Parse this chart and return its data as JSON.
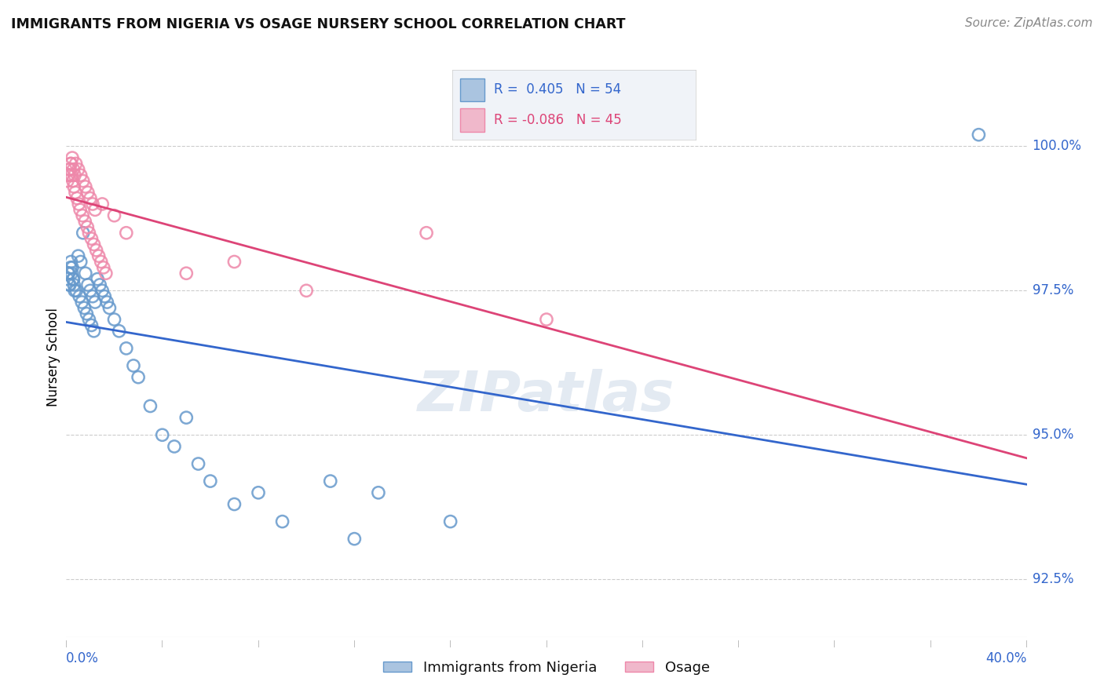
{
  "title": "IMMIGRANTS FROM NIGERIA VS OSAGE NURSERY SCHOOL CORRELATION CHART",
  "source": "Source: ZipAtlas.com",
  "ylabel": "Nursery School",
  "ylabel_right_vals": [
    100.0,
    97.5,
    95.0,
    92.5
  ],
  "xmin": 0.0,
  "xmax": 40.0,
  "ymin": 91.5,
  "ymax": 101.2,
  "legend_blue_R": "R =  0.405",
  "legend_blue_N": "N = 54",
  "legend_pink_R": "R = -0.086",
  "legend_pink_N": "N = 45",
  "blue_label": "Immigrants from Nigeria",
  "pink_label": "Osage",
  "background_color": "#ffffff",
  "grid_color": "#cccccc",
  "blue_color": "#6699cc",
  "pink_color": "#ee88aa",
  "blue_line_color": "#3366cc",
  "pink_line_color": "#dd4477",
  "title_color": "#111111",
  "axis_label_color": "#3366cc",
  "blue_x": [
    0.1,
    0.15,
    0.2,
    0.25,
    0.3,
    0.35,
    0.5,
    0.6,
    0.7,
    0.8,
    0.9,
    1.0,
    1.1,
    1.2,
    1.3,
    1.4,
    1.5,
    1.6,
    1.7,
    1.8,
    2.0,
    2.2,
    2.5,
    2.8,
    3.0,
    3.5,
    4.0,
    4.5,
    5.0,
    5.5,
    6.0,
    7.0,
    8.0,
    9.0,
    11.0,
    12.0,
    13.0,
    16.0,
    38.0,
    0.05,
    0.08,
    0.12,
    0.18,
    0.22,
    0.28,
    0.32,
    0.42,
    0.55,
    0.65,
    0.75,
    0.85,
    0.95,
    1.05,
    1.15
  ],
  "blue_y": [
    97.8,
    97.6,
    98.0,
    97.9,
    97.7,
    97.5,
    98.1,
    98.0,
    98.5,
    97.8,
    97.6,
    97.5,
    97.4,
    97.3,
    97.7,
    97.6,
    97.5,
    97.4,
    97.3,
    97.2,
    97.0,
    96.8,
    96.5,
    96.2,
    96.0,
    95.5,
    95.0,
    94.8,
    95.3,
    94.5,
    94.2,
    93.8,
    94.0,
    93.5,
    94.2,
    93.2,
    94.0,
    93.5,
    100.2,
    97.7,
    97.8,
    97.6,
    97.9,
    97.8,
    97.7,
    97.6,
    97.5,
    97.4,
    97.3,
    97.2,
    97.1,
    97.0,
    96.9,
    96.8
  ],
  "pink_x": [
    0.1,
    0.15,
    0.2,
    0.25,
    0.3,
    0.35,
    0.4,
    0.5,
    0.6,
    0.7,
    0.8,
    0.9,
    1.0,
    1.1,
    1.2,
    1.5,
    2.0,
    2.5,
    5.0,
    7.0,
    10.0,
    15.0,
    20.0,
    0.05,
    0.08,
    0.12,
    0.18,
    0.22,
    0.28,
    0.32,
    0.38,
    0.45,
    0.52,
    0.58,
    0.68,
    0.78,
    0.88,
    0.95,
    1.05,
    1.15,
    1.25,
    1.35,
    1.45,
    1.55,
    1.65
  ],
  "pink_y": [
    99.5,
    99.6,
    99.7,
    99.8,
    99.6,
    99.5,
    99.7,
    99.6,
    99.5,
    99.4,
    99.3,
    99.2,
    99.1,
    99.0,
    98.9,
    99.0,
    98.8,
    98.5,
    97.8,
    98.0,
    97.5,
    98.5,
    97.0,
    99.4,
    99.5,
    99.6,
    99.7,
    99.5,
    99.4,
    99.3,
    99.2,
    99.1,
    99.0,
    98.9,
    98.8,
    98.7,
    98.6,
    98.5,
    98.4,
    98.3,
    98.2,
    98.1,
    98.0,
    97.9,
    97.8
  ]
}
